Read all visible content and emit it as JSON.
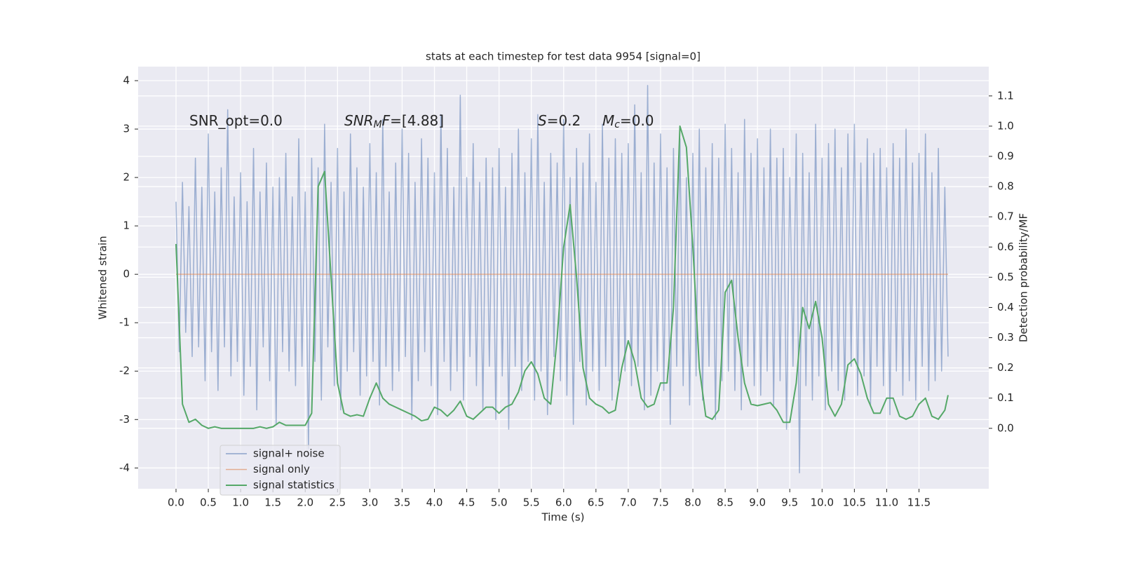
{
  "chart_data": {
    "type": "line",
    "title": "stats at each timestep for test data 9954 [signal=0]",
    "xlabel": "Time (s)",
    "ylabel": "Whitened strain",
    "y2label": "Detection probability/MF",
    "annotations": [
      [
        "SNR_opt=0.0"
      ],
      [
        "SNR",
        "M",
        "F",
        "=[4.88]"
      ],
      [
        "S",
        "=0.2"
      ],
      [
        "M",
        "c",
        "=0.0"
      ]
    ],
    "grid": true,
    "legend": "lower left",
    "xlim": [
      -0.586,
      12.58
    ],
    "ylim": [
      -4.43,
      4.29
    ],
    "y2lim": [
      -0.2,
      1.197
    ],
    "xticks": [
      {
        "value": 0,
        "label": "0.0"
      },
      {
        "value": 0.5,
        "label": "0.5"
      },
      {
        "value": 1,
        "label": "1.0"
      },
      {
        "value": 1.5,
        "label": "1.5"
      },
      {
        "value": 2,
        "label": "2.0"
      },
      {
        "value": 2.5,
        "label": "2.5"
      },
      {
        "value": 3,
        "label": "3.0"
      },
      {
        "value": 3.5,
        "label": "3.5"
      },
      {
        "value": 4,
        "label": "4.0"
      },
      {
        "value": 4.5,
        "label": "4.5"
      },
      {
        "value": 5,
        "label": "5.0"
      },
      {
        "value": 5.5,
        "label": "5.5"
      },
      {
        "value": 6,
        "label": "6.0"
      },
      {
        "value": 6.5,
        "label": "6.5"
      },
      {
        "value": 7,
        "label": "7.0"
      },
      {
        "value": 7.5,
        "label": "7.5"
      },
      {
        "value": 8,
        "label": "8.0"
      },
      {
        "value": 8.5,
        "label": "8.5"
      },
      {
        "value": 9,
        "label": "9.0"
      },
      {
        "value": 9.5,
        "label": "9.5"
      },
      {
        "value": 10,
        "label": "10.0"
      },
      {
        "value": 10.5,
        "label": "10.5"
      },
      {
        "value": 11,
        "label": "11.0"
      },
      {
        "value": 11.5,
        "label": "11.5"
      }
    ],
    "yticks": [
      -4,
      -3,
      -2,
      -1,
      0,
      1,
      2,
      3,
      4
    ],
    "y2ticks": [
      {
        "value": 0,
        "label": "0.0"
      },
      {
        "value": 0.1,
        "label": "0.1"
      },
      {
        "value": 0.2,
        "label": "0.2"
      },
      {
        "value": 0.3,
        "label": "0.3"
      },
      {
        "value": 0.4,
        "label": "0.4"
      },
      {
        "value": 0.5,
        "label": "0.5"
      },
      {
        "value": 0.6,
        "label": "0.6"
      },
      {
        "value": 0.7,
        "label": "0.7"
      },
      {
        "value": 0.8,
        "label": "0.8"
      },
      {
        "value": 0.9,
        "label": "0.9"
      },
      {
        "value": 1,
        "label": "1.0"
      },
      {
        "value": 1.1,
        "label": "1.1"
      }
    ],
    "series": [
      {
        "name": "signal+ noise",
        "color": "#4c72b0",
        "x": [
          0,
          0.05,
          0.1,
          0.15,
          0.2,
          0.25,
          0.3,
          0.35,
          0.4,
          0.45,
          0.5,
          0.55,
          0.6,
          0.65,
          0.7,
          0.75,
          0.8,
          0.85,
          0.9,
          0.95,
          1,
          1.05,
          1.1,
          1.15,
          1.2,
          1.25,
          1.3,
          1.35,
          1.4,
          1.45,
          1.5,
          1.55,
          1.6,
          1.65,
          1.7,
          1.75,
          1.8,
          1.85,
          1.9,
          1.95,
          2,
          2.05,
          2.1,
          2.15,
          2.2,
          2.25,
          2.3,
          2.35,
          2.4,
          2.45,
          2.5,
          2.55,
          2.6,
          2.65,
          2.7,
          2.75,
          2.8,
          2.85,
          2.9,
          2.95,
          3,
          3.05,
          3.1,
          3.15,
          3.2,
          3.25,
          3.3,
          3.35,
          3.4,
          3.45,
          3.5,
          3.55,
          3.6,
          3.65,
          3.7,
          3.75,
          3.8,
          3.85,
          3.9,
          3.95,
          4,
          4.05,
          4.1,
          4.15,
          4.2,
          4.25,
          4.3,
          4.35,
          4.4,
          4.45,
          4.5,
          4.55,
          4.6,
          4.65,
          4.7,
          4.75,
          4.8,
          4.85,
          4.9,
          4.95,
          5,
          5.05,
          5.1,
          5.15,
          5.2,
          5.25,
          5.3,
          5.35,
          5.4,
          5.45,
          5.5,
          5.55,
          5.6,
          5.65,
          5.7,
          5.75,
          5.8,
          5.85,
          5.9,
          5.95,
          6,
          6.05,
          6.1,
          6.15,
          6.2,
          6.25,
          6.3,
          6.35,
          6.4,
          6.45,
          6.5,
          6.55,
          6.6,
          6.65,
          6.7,
          6.75,
          6.8,
          6.85,
          6.9,
          6.95,
          7,
          7.05,
          7.1,
          7.15,
          7.2,
          7.25,
          7.3,
          7.35,
          7.4,
          7.45,
          7.5,
          7.55,
          7.6,
          7.65,
          7.7,
          7.75,
          7.8,
          7.85,
          7.9,
          7.95,
          8,
          8.05,
          8.1,
          8.15,
          8.2,
          8.25,
          8.3,
          8.35,
          8.4,
          8.45,
          8.5,
          8.55,
          8.6,
          8.65,
          8.7,
          8.75,
          8.8,
          8.85,
          8.9,
          8.95,
          9,
          9.05,
          9.1,
          9.15,
          9.2,
          9.25,
          9.3,
          9.35,
          9.4,
          9.45,
          9.5,
          9.55,
          9.6,
          9.65,
          9.7,
          9.75,
          9.8,
          9.85,
          9.9,
          9.95,
          10,
          10.05,
          10.1,
          10.15,
          10.2,
          10.25,
          10.3,
          10.35,
          10.4,
          10.45,
          10.5,
          10.55,
          10.6,
          10.65,
          10.7,
          10.75,
          10.8,
          10.85,
          10.9,
          10.95,
          11,
          11.05,
          11.1,
          11.15,
          11.2,
          11.25,
          11.3,
          11.35,
          11.4,
          11.45,
          11.5,
          11.55,
          11.6,
          11.65,
          11.7,
          11.75,
          11.8,
          11.85,
          11.9,
          11.95
        ],
        "values": [
          1.5,
          -1.6,
          1.9,
          -1.2,
          1.4,
          -1.7,
          2.4,
          -1.5,
          1.8,
          -2.2,
          2.9,
          -1.6,
          1.7,
          -2.4,
          2.2,
          -1.5,
          3.4,
          -2.1,
          1.6,
          -1.8,
          2.1,
          -2.5,
          1.5,
          -1.9,
          2.6,
          -2.8,
          1.7,
          -1.5,
          2.3,
          -2.2,
          1.8,
          -3.1,
          2.0,
          -1.6,
          2.5,
          -2.0,
          1.6,
          -2.3,
          2.8,
          -1.9,
          1.7,
          -3.6,
          2.4,
          -1.8,
          2.2,
          -2.6,
          3.1,
          -1.5,
          1.9,
          -2.3,
          2.6,
          -2.8,
          1.7,
          -2.0,
          2.9,
          -1.6,
          2.2,
          -2.5,
          1.8,
          -2.1,
          2.7,
          -1.8,
          2.1,
          -2.7,
          3.2,
          -1.9,
          1.7,
          -2.4,
          2.3,
          -2.0,
          3.0,
          -1.7,
          2.5,
          -3.0,
          1.9,
          -2.2,
          2.8,
          -1.6,
          2.4,
          -2.3,
          2.1,
          -2.9,
          3.3,
          -1.8,
          2.6,
          -2.4,
          1.8,
          -2.0,
          3.7,
          -2.6,
          2.0,
          -1.7,
          2.7,
          -2.3,
          1.9,
          -2.8,
          2.4,
          -1.9,
          2.2,
          -3.0,
          2.6,
          -2.1,
          1.8,
          -3.2,
          2.5,
          -1.9,
          3.0,
          -2.4,
          2.1,
          -1.8,
          2.8,
          -2.6,
          3.3,
          -2.0,
          1.9,
          -2.9,
          2.5,
          -1.7,
          2.3,
          -2.2,
          3.2,
          -2.5,
          2.0,
          -3.1,
          2.6,
          -1.8,
          2.3,
          -2.7,
          2.9,
          -2.0,
          1.9,
          -2.4,
          3.1,
          -1.9,
          2.4,
          -2.6,
          2.8,
          -2.2,
          2.5,
          -2.0,
          2.7,
          -2.3,
          3.5,
          -1.9,
          2.1,
          -2.8,
          3.9,
          -2.5,
          2.3,
          -2.0,
          2.9,
          -2.4,
          2.2,
          -3.1,
          2.6,
          -1.9,
          2.8,
          -2.3,
          2.0,
          -2.7,
          2.5,
          -2.1,
          3.0,
          -2.6,
          2.2,
          -1.9,
          2.7,
          -3.0,
          2.4,
          -2.2,
          3.1,
          -2.0,
          2.6,
          -2.4,
          2.1,
          -2.8,
          3.2,
          -1.9,
          2.5,
          -2.3,
          2.8,
          -2.5,
          2.2,
          -2.0,
          3.0,
          -2.7,
          2.4,
          -2.2,
          2.6,
          -3.2,
          2.0,
          -1.9,
          2.9,
          -4.1,
          2.5,
          -2.3,
          2.1,
          -2.6,
          3.1,
          -2.1,
          2.4,
          -2.8,
          2.7,
          -2.0,
          3.0,
          -2.4,
          2.2,
          -2.6,
          2.9,
          -1.9,
          3.1,
          -2.5,
          2.3,
          -2.1,
          2.8,
          -2.7,
          2.5,
          -1.9,
          2.6,
          -2.3,
          2.2,
          -2.9,
          2.7,
          -2.0,
          2.4,
          -2.5,
          3.0,
          -2.2,
          2.3,
          -2.6,
          2.5,
          -1.9,
          2.9,
          -2.4,
          2.1,
          -2.2,
          2.6,
          -2.0,
          1.8,
          -1.7
        ]
      },
      {
        "name": "signal only",
        "color": "#dd8452",
        "x": [
          0,
          11.95
        ],
        "values": [
          0,
          0
        ]
      },
      {
        "name": "signal statistics",
        "color": "#55a868",
        "axis": "y2",
        "x": [
          0,
          0.1,
          0.2,
          0.3,
          0.4,
          0.5,
          0.6,
          0.7,
          0.8,
          0.9,
          1,
          1.1,
          1.2,
          1.3,
          1.4,
          1.5,
          1.6,
          1.7,
          1.8,
          1.9,
          2,
          2.1,
          2.2,
          2.3,
          2.4,
          2.5,
          2.6,
          2.7,
          2.8,
          2.9,
          3,
          3.1,
          3.2,
          3.3,
          3.4,
          3.5,
          3.6,
          3.7,
          3.8,
          3.9,
          4,
          4.1,
          4.2,
          4.3,
          4.4,
          4.5,
          4.6,
          4.7,
          4.8,
          4.9,
          5,
          5.1,
          5.2,
          5.3,
          5.4,
          5.5,
          5.6,
          5.7,
          5.8,
          5.9,
          6,
          6.1,
          6.2,
          6.3,
          6.4,
          6.5,
          6.6,
          6.7,
          6.8,
          6.9,
          7,
          7.1,
          7.2,
          7.3,
          7.4,
          7.5,
          7.6,
          7.7,
          7.8,
          7.9,
          8,
          8.1,
          8.2,
          8.3,
          8.4,
          8.5,
          8.6,
          8.7,
          8.8,
          8.9,
          9,
          9.1,
          9.2,
          9.3,
          9.4,
          9.5,
          9.6,
          9.7,
          9.8,
          9.9,
          10,
          10.1,
          10.2,
          10.3,
          10.4,
          10.5,
          10.6,
          10.7,
          10.8,
          10.9,
          11,
          11.1,
          11.2,
          11.3,
          11.4,
          11.5,
          11.6,
          11.7,
          11.8,
          11.9,
          11.95
        ],
        "values": [
          0.61,
          0.08,
          0.02,
          0.03,
          0.01,
          0.0,
          0.005,
          0.0,
          0.0,
          0.0,
          0.0,
          0.0,
          0.0,
          0.005,
          0.0,
          0.005,
          0.02,
          0.01,
          0.01,
          0.01,
          0.01,
          0.05,
          0.8,
          0.85,
          0.5,
          0.15,
          0.05,
          0.04,
          0.045,
          0.04,
          0.1,
          0.15,
          0.1,
          0.08,
          0.07,
          0.06,
          0.05,
          0.04,
          0.025,
          0.03,
          0.07,
          0.06,
          0.04,
          0.06,
          0.09,
          0.04,
          0.03,
          0.05,
          0.07,
          0.07,
          0.05,
          0.07,
          0.08,
          0.12,
          0.19,
          0.22,
          0.18,
          0.1,
          0.08,
          0.3,
          0.6,
          0.74,
          0.5,
          0.2,
          0.1,
          0.08,
          0.07,
          0.05,
          0.06,
          0.2,
          0.29,
          0.22,
          0.1,
          0.07,
          0.08,
          0.15,
          0.15,
          0.4,
          1.0,
          0.93,
          0.6,
          0.2,
          0.04,
          0.03,
          0.06,
          0.45,
          0.49,
          0.3,
          0.15,
          0.08,
          0.075,
          0.08,
          0.085,
          0.06,
          0.02,
          0.02,
          0.15,
          0.4,
          0.33,
          0.42,
          0.3,
          0.08,
          0.04,
          0.08,
          0.21,
          0.23,
          0.18,
          0.1,
          0.05,
          0.05,
          0.1,
          0.1,
          0.04,
          0.03,
          0.04,
          0.08,
          0.1,
          0.04,
          0.03,
          0.06,
          0.11
        ]
      }
    ]
  }
}
